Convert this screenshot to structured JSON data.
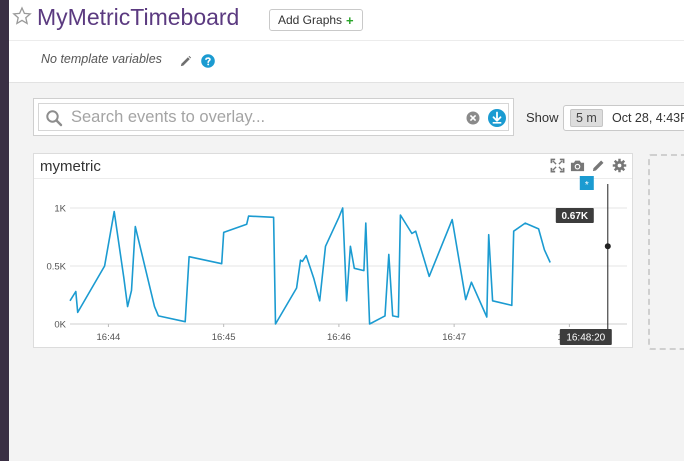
{
  "header": {
    "title": "MyMetricTimeboard",
    "add_graphs_label": "Add Graphs",
    "add_graphs_plus": "+",
    "template_variables_text": "No template variables"
  },
  "search": {
    "placeholder": "Search events to overlay...",
    "value": ""
  },
  "timeframe": {
    "show_label": "Show",
    "span": "5 m",
    "range_text": "Oct 28, 4:43P"
  },
  "widget": {
    "title": "mymetric",
    "tooltip_value": "0.67K",
    "cursor_time": "16:48:20",
    "event_marker": "*"
  },
  "colors": {
    "title": "#5b3a80",
    "line": "#1b9bd1",
    "accent": "#1b9bd1",
    "tooltip_bg": "#3c3c3c"
  },
  "icons": [
    "star-icon",
    "pencil-icon",
    "help-icon",
    "search-icon",
    "clear-icon",
    "download-icon",
    "expand-icon",
    "camera-icon",
    "pencil-icon",
    "gear-icon"
  ],
  "chart_data": {
    "type": "line",
    "title": "mymetric",
    "ylim": [
      0,
      1000
    ],
    "yticks": [
      0,
      500,
      1000
    ],
    "ytick_labels": [
      "0K",
      "0.5K",
      "1K"
    ],
    "xlim": [
      "16:43:40",
      "16:48:30"
    ],
    "xticks": [
      "16:44",
      "16:45",
      "16:46",
      "16:47",
      "16:48"
    ],
    "grid": true,
    "series": [
      {
        "values": [
          [
            "16:43:40",
            200
          ],
          [
            "16:43:43",
            280
          ],
          [
            "16:43:44",
            100
          ],
          [
            "16:43:58",
            500
          ],
          [
            "16:44:03",
            970
          ],
          [
            "16:44:08",
            400
          ],
          [
            "16:44:10",
            150
          ],
          [
            "16:44:12",
            290
          ],
          [
            "16:44:14",
            840
          ],
          [
            "16:44:24",
            150
          ],
          [
            "16:44:26",
            70
          ],
          [
            "16:44:40",
            20
          ],
          [
            "16:44:42",
            580
          ],
          [
            "16:44:59",
            520
          ],
          [
            "16:45:00",
            790
          ],
          [
            "16:45:12",
            860
          ],
          [
            "16:45:13",
            930
          ],
          [
            "16:45:26",
            920
          ],
          [
            "16:45:27",
            0
          ],
          [
            "16:45:38",
            310
          ],
          [
            "16:45:40",
            550
          ],
          [
            "16:45:41",
            540
          ],
          [
            "16:45:43",
            590
          ],
          [
            "16:45:47",
            390
          ],
          [
            "16:45:50",
            200
          ],
          [
            "16:45:53",
            670
          ],
          [
            "16:46:00",
            920
          ],
          [
            "16:46:02",
            1000
          ],
          [
            "16:46:04",
            200
          ],
          [
            "16:46:06",
            670
          ],
          [
            "16:46:08",
            480
          ],
          [
            "16:46:13",
            460
          ],
          [
            "16:46:14",
            870
          ],
          [
            "16:46:16",
            0
          ],
          [
            "16:46:24",
            70
          ],
          [
            "16:46:26",
            600
          ],
          [
            "16:46:28",
            70
          ],
          [
            "16:46:31",
            60
          ],
          [
            "16:46:32",
            940
          ],
          [
            "16:46:38",
            780
          ],
          [
            "16:46:40",
            800
          ],
          [
            "16:46:47",
            410
          ],
          [
            "16:46:59",
            900
          ],
          [
            "16:47:06",
            210
          ],
          [
            "16:47:09",
            360
          ],
          [
            "16:47:17",
            60
          ],
          [
            "16:47:18",
            770
          ],
          [
            "16:47:20",
            200
          ],
          [
            "16:47:30",
            160
          ],
          [
            "16:47:31",
            800
          ],
          [
            "16:47:37",
            870
          ],
          [
            "16:47:44",
            820
          ],
          [
            "16:47:47",
            640
          ],
          [
            "16:47:50",
            530
          ]
        ]
      }
    ]
  }
}
